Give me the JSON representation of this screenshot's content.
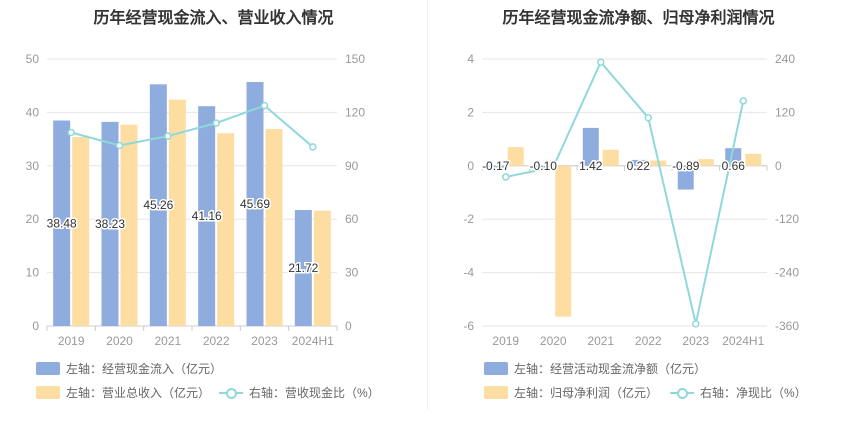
{
  "charts": {
    "left": {
      "title": "历年经营现金流入、营业收入情况",
      "legend": {
        "bar1": "左轴：经营现金流入（亿元）",
        "bar2": "左轴：营业总收入（亿元）",
        "line": "右轴：营收现金比（%）"
      }
    },
    "right": {
      "title": "历年经营现金流净额、归母净利润情况",
      "legend": {
        "bar1": "左轴：经营活动现金流净额（亿元）",
        "bar2": "左轴：归母净利润（亿元）",
        "line": "右轴：净现比（%）"
      }
    }
  },
  "colors": {
    "bar1": "#8eadde",
    "bar2": "#fedda3",
    "line": "#8fd8dc",
    "grid": "#e6e6e6",
    "axis_text": "#999999"
  },
  "chart_data": [
    {
      "type": "bar",
      "title": "历年经营现金流入、营业收入情况",
      "categories": [
        "2019",
        "2020",
        "2021",
        "2022",
        "2023",
        "2024H1"
      ],
      "series": [
        {
          "name": "左轴：经营现金流入（亿元）",
          "axis": "left",
          "values": [
            38.48,
            38.23,
            45.26,
            41.16,
            45.69,
            21.72
          ],
          "labels": [
            "38.48",
            "38.23",
            "45.26",
            "41.16",
            "45.69",
            "21.72"
          ]
        },
        {
          "name": "左轴：营业总收入（亿元）",
          "axis": "left",
          "values": [
            35.4,
            37.7,
            42.4,
            36.1,
            36.9,
            21.6
          ]
        },
        {
          "name": "右轴：营收现金比（%）",
          "axis": "right",
          "type": "line",
          "values": [
            108.7,
            101.4,
            106.7,
            114.0,
            123.8,
            100.6
          ]
        }
      ],
      "y_left": {
        "min": 0,
        "max": 50,
        "ticks": [
          "0",
          "10",
          "20",
          "30",
          "40",
          "50"
        ]
      },
      "y_right": {
        "min": 0,
        "max": 150,
        "ticks": [
          "0",
          "30",
          "60",
          "90",
          "120",
          "150"
        ]
      },
      "grid": true,
      "legend_position": "bottom-left"
    },
    {
      "type": "bar",
      "title": "历年经营现金流净额、归母净利润情况",
      "categories": [
        "2019",
        "2020",
        "2021",
        "2022",
        "2023",
        "2024H1"
      ],
      "series": [
        {
          "name": "左轴：经营活动现金流净额（亿元）",
          "axis": "left",
          "values": [
            -0.17,
            -0.1,
            1.42,
            0.22,
            -0.89,
            0.66
          ],
          "labels": [
            "-0.17",
            "-0.10",
            "1.42",
            "0.22",
            "-0.89",
            "0.66"
          ]
        },
        {
          "name": "左轴：归母净利润（亿元）",
          "axis": "left",
          "values": [
            0.7,
            -5.65,
            0.6,
            0.2,
            0.25,
            0.45
          ]
        },
        {
          "name": "右轴：净现比（%）",
          "axis": "right",
          "type": "line",
          "values": [
            -25,
            -3,
            233,
            108,
            -355,
            146
          ]
        }
      ],
      "y_left": {
        "min": -6,
        "max": 4,
        "ticks": [
          "-6",
          "-4",
          "-2",
          "0",
          "2",
          "4"
        ]
      },
      "y_right": {
        "min": -360,
        "max": 240,
        "ticks": [
          "-360",
          "-240",
          "-120",
          "0",
          "120",
          "240"
        ]
      },
      "grid": true,
      "legend_position": "bottom-left"
    }
  ]
}
